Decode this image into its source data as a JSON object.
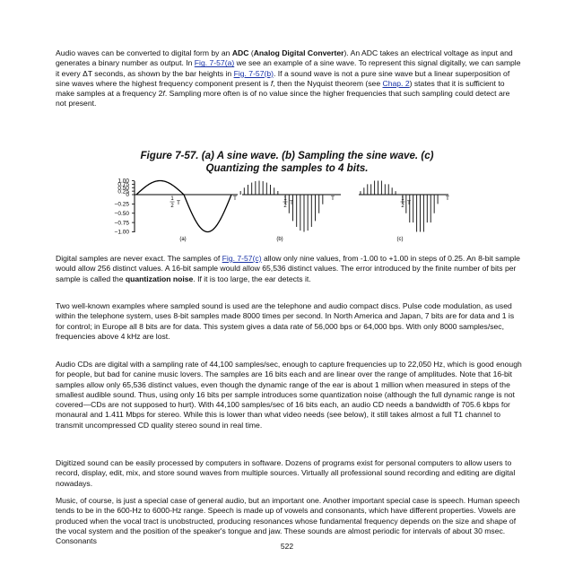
{
  "para1": {
    "t1": "Audio waves can be converted to digital form by an ",
    "b1": "ADC",
    "t2": " (",
    "b2": "Analog Digital Converter",
    "t3": "). An ADC takes an electrical voltage as input and generates a binary number as output. In ",
    "link1": "Fig. 7-57(a)",
    "t4": " we see an example of a sine wave. To represent this signal digitally, we can sample it every ΔT seconds, as shown by the bar heights in ",
    "link2": "Fig. 7-57(b)",
    "t5": ". If a sound wave is not a pure sine wave but a linear superposition of sine waves where the highest frequency component present is ",
    "i1": "f",
    "t6": ", then the Nyquist theorem (see ",
    "link3": "Chap. 2",
    "t7": ") states that it is sufficient to make samples at a frequency 2",
    "i2": "f",
    "t8": ". Sampling more often is of no value since the higher frequencies that such sampling could detect are not present."
  },
  "caption": {
    "line1": "Figure 7-57. (a) A sine wave. (b) Sampling the sine wave. (c)",
    "line2": "Quantizing the samples to 4 bits."
  },
  "figure": {
    "yticks": [
      "1.00",
      "0.75",
      "0.50",
      "0.25",
      "0",
      "−0.25",
      "−0.50",
      "−0.75",
      "−1.00"
    ],
    "half_num": "1",
    "half_den": "2",
    "t_label": "T",
    "panels": [
      "(a)",
      "(b)",
      "(c)"
    ]
  },
  "chart_data": {
    "type": "line",
    "panels": [
      {
        "label": "(a)",
        "kind": "continuous",
        "function": "sin(2*pi*t/T)",
        "x_range": [
          "0",
          "T"
        ]
      },
      {
        "label": "(b)",
        "kind": "samples",
        "count": 24,
        "values_formula": "sin(2*pi*k/24)"
      },
      {
        "label": "(c)",
        "kind": "quantized samples",
        "count": 24,
        "step": 0.25
      }
    ],
    "ylim": [
      -1,
      1
    ],
    "yticks": [
      1.0,
      0.75,
      0.5,
      0.25,
      0,
      -0.25,
      -0.5,
      -0.75,
      -1.0
    ]
  },
  "para2": {
    "t1": "Digital samples are never exact. The samples of ",
    "link1": "Fig. 7-57(c)",
    "t2": " allow only nine values, from -1.00 to +1.00 in steps of 0.25. An 8-bit sample would allow 256 distinct values. A 16-bit sample would allow 65,536 distinct values. The error introduced by the finite number of bits per sample is called the ",
    "b1": "quantization noise",
    "t3": ". If it is too large, the ear detects it."
  },
  "para3": "Two well-known examples where sampled sound is used are the telephone and audio compact discs. Pulse code modulation, as used within the telephone system, uses 8-bit samples made 8000 times per second. In North America and Japan, 7 bits are for data and 1 is for control; in Europe all 8 bits are for data. This system gives a data rate of 56,000 bps or 64,000 bps. With only 8000 samples/sec, frequencies above 4 kHz are lost.",
  "para4": "Audio CDs are digital with a sampling rate of 44,100 samples/sec, enough to capture frequencies up to 22,050 Hz, which is good enough for people, but bad for canine music lovers. The samples are 16 bits each and are linear over the range of amplitudes. Note that 16-bit samples allow only 65,536 distinct values, even though the dynamic range of the ear is about 1 million when measured in steps of the smallest audible sound. Thus, using only 16 bits per sample introduces some quantization noise (although the full dynamic range is not covered—CDs are not supposed to hurt). With 44,100 samples/sec of 16 bits each, an audio CD needs a bandwidth of 705.6 kbps for monaural and 1.411 Mbps for stereo. While this is lower than what video needs (see below), it still takes almost a full T1 channel to transmit uncompressed CD quality stereo sound in real time.",
  "para5": "Digitized sound can be easily processed by computers in software. Dozens of programs exist for personal computers to allow users to record, display, edit, mix, and store sound waves from multiple sources. Virtually all professional sound recording and editing are digital nowadays.",
  "para6": "Music, of course, is just a special case of general audio, but an important one. Another important special case is speech. Human speech tends to be in the 600-Hz to 6000-Hz range. Speech is made up of vowels and consonants, which have different properties. Vowels are produced when the vocal tract is unobstructed, producing resonances whose fundamental frequency depends on the size and shape of the vocal system and the position of the speaker's tongue and jaw. These sounds are almost periodic for intervals of about 30 msec. Consonants",
  "page_number": "522"
}
